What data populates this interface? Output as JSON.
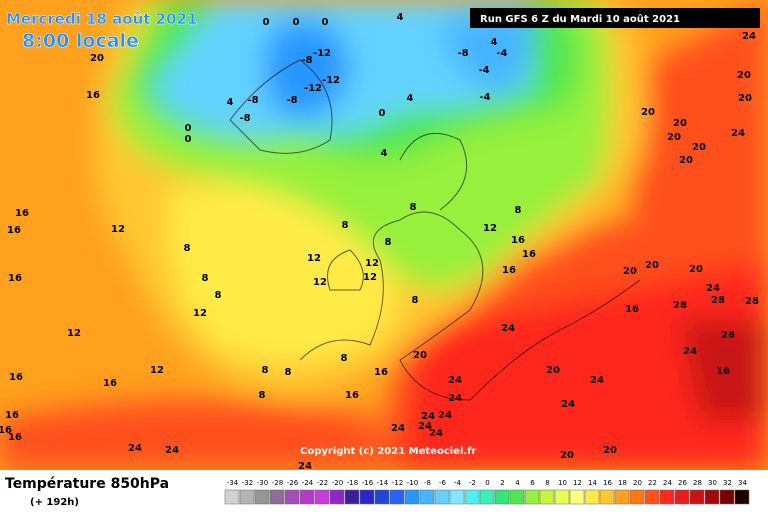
{
  "header": {
    "date": "Mercredi 18 août 2021",
    "time": "8:00 locale",
    "run": "Run GFS 6 Z du Mardi 10 août 2021"
  },
  "copyright": "Copyright (c) 2021 Meteociel.fr",
  "footer": {
    "title": "Température 850hPa",
    "lead": "(+ 192h)"
  },
  "legend": {
    "ticks": [
      -34,
      -32,
      -30,
      -28,
      -26,
      -24,
      -22,
      -20,
      -18,
      -16,
      -14,
      -12,
      -10,
      -8,
      -6,
      -4,
      -2,
      0,
      2,
      4,
      6,
      8,
      10,
      12,
      14,
      16,
      18,
      20,
      22,
      24,
      26,
      28,
      30,
      32,
      34
    ],
    "colors": [
      "#d2d2d2",
      "#b4b4b4",
      "#969696",
      "#8c6e96",
      "#a050b4",
      "#b43cc8",
      "#c83cdc",
      "#8c28c8",
      "#3c1e96",
      "#2828c8",
      "#1e46dc",
      "#2864f0",
      "#2896ff",
      "#46b4ff",
      "#64d2ff",
      "#82e6ff",
      "#50f0f0",
      "#3cf0b4",
      "#32e678",
      "#50e650",
      "#96f03c",
      "#c8f53c",
      "#e6ff50",
      "#ffff82",
      "#ffeb46",
      "#ffc832",
      "#ffa01e",
      "#ff7814",
      "#ff501e",
      "#ff281e",
      "#e61e1e",
      "#c81414",
      "#a00a0a",
      "#780000",
      "#1e0000"
    ]
  },
  "contour_labels": [
    20,
    16,
    16,
    16,
    16,
    12,
    12,
    16,
    16,
    16,
    16,
    16,
    12,
    12,
    8,
    8,
    8,
    12,
    12,
    12,
    12,
    8,
    8,
    8,
    8,
    8,
    8,
    8,
    8,
    16,
    16,
    20,
    24,
    24,
    24,
    24,
    24,
    24,
    24,
    24,
    24,
    24,
    24,
    20,
    24,
    24,
    20,
    20,
    20,
    20,
    20,
    16,
    28,
    24,
    28,
    28,
    28,
    24,
    16,
    20,
    20,
    20,
    20,
    20,
    20,
    24,
    24,
    20,
    4,
    4,
    -4,
    -4,
    -4,
    -8,
    4,
    0,
    -12,
    -8,
    -8,
    -12,
    -12,
    -8,
    -8,
    4,
    0,
    0,
    0,
    8,
    12,
    16,
    16,
    16,
    0,
    0,
    4
  ]
}
